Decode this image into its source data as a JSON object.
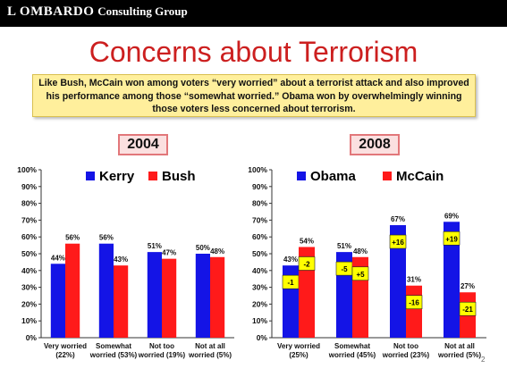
{
  "header": {
    "brand_main": "L OMBARDO",
    "brand_sub": "Consulting Group"
  },
  "slide": {
    "title": "Concerns about Terrorism",
    "callout_lines": [
      "Like Bush, McCain won among voters “very worried” about a terrorist attack and also improved",
      "his performance among those “somewhat worried.”  Obama won by overwhelmingly winning",
      "those voters less concerned about terrorism."
    ],
    "page_number": "2"
  },
  "colors": {
    "blue": "#1414e6",
    "red": "#ff1a1a",
    "highlight": "#ffff00",
    "title_red": "#cc1f1f"
  },
  "chart_data": [
    {
      "type": "bar",
      "year_label": "2004",
      "categories": [
        [
          "Very worried",
          "(22%)"
        ],
        [
          "Somewhat",
          "worried (53%)"
        ],
        [
          "Not too",
          "worried (19%)"
        ],
        [
          "Not at all",
          "worried (5%)"
        ]
      ],
      "series": [
        {
          "name": "Kerry",
          "color": "#1414e6",
          "values": [
            44,
            56,
            51,
            50
          ],
          "labels": [
            "44%",
            "56%",
            "51%",
            "50%"
          ]
        },
        {
          "name": "Bush",
          "color": "#ff1a1a",
          "values": [
            56,
            43,
            47,
            48
          ],
          "labels": [
            "56%",
            "43%",
            "47%",
            "48%"
          ]
        }
      ],
      "ylim": [
        0,
        100
      ],
      "yticks": [
        "0%",
        "10%",
        "20%",
        "30%",
        "40%",
        "50%",
        "60%",
        "70%",
        "80%",
        "90%",
        "100%"
      ],
      "legend": "top"
    },
    {
      "type": "bar",
      "year_label": "2008",
      "categories": [
        [
          "Very worried",
          "(25%)"
        ],
        [
          "Somewhat",
          "worried (45%)"
        ],
        [
          "Not too",
          "worried (23%)"
        ],
        [
          "Not at all",
          "worried (5%)"
        ]
      ],
      "series": [
        {
          "name": "Obama",
          "color": "#1414e6",
          "values": [
            43,
            51,
            67,
            69
          ],
          "labels": [
            "43%",
            "51%",
            "67%",
            "69%"
          ],
          "changes": [
            "-1",
            "-5",
            "+16",
            "+19"
          ]
        },
        {
          "name": "McCain",
          "color": "#ff1a1a",
          "values": [
            54,
            48,
            31,
            27
          ],
          "labels": [
            "54%",
            "48%",
            "31%",
            "27%"
          ],
          "changes": [
            "-2",
            "+5",
            "-16",
            "-21"
          ]
        }
      ],
      "ylim": [
        0,
        100
      ],
      "yticks": [
        "0%",
        "10%",
        "20%",
        "30%",
        "40%",
        "50%",
        "60%",
        "70%",
        "80%",
        "90%",
        "100%"
      ],
      "legend": "top"
    }
  ]
}
